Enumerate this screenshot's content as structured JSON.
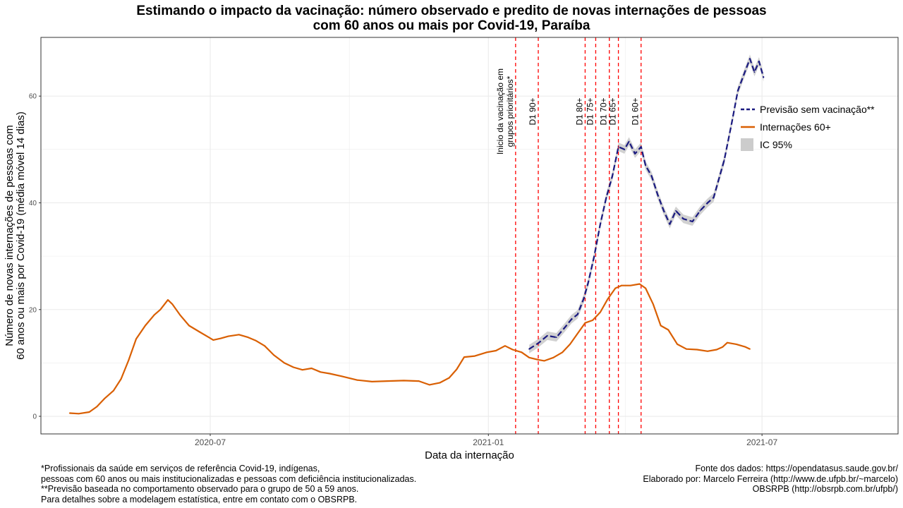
{
  "title_lines": [
    "Estimando o impacto da vacinação: número observado e predito de novas internações de pessoas",
    "com 60 anos ou mais por Covid-19, Paraíba"
  ],
  "footnotes_left": [
    "*Profissionais da saúde em serviços de referência Covid-19, indígenas,",
    "pessoas com 60 anos ou mais institucionalizadas e pessoas com deficiência institucionalizadas.",
    "**Previsão baseada no comportamento observado para o grupo de 50 a 59 anos.",
    "Para detalhes sobre a modelagem estatística, entre em contato com o OBSRPB."
  ],
  "footnotes_right": [
    "Fonte dos dados: https://opendatasus.saude.gov.br/",
    "Elaborado por: Marcelo Ferreira (http://www.de.ufpb.br/~marcelo)",
    "OBSRPB (http://obsrpb.com.br/ufpb/)"
  ],
  "colors": {
    "observed": "#d95f02",
    "predicted": "#1a1a80",
    "ci": "#cccccc",
    "vline": "#ff0000",
    "grid": "#ebebeb",
    "panel_border": "#333333"
  },
  "chart_data": {
    "type": "line",
    "xlabel": "Data da internação",
    "ylabel_lines": [
      "Número de novas internações de pessoas com",
      "60 anos ou mais por Covid-19 (média móvel 14 dias)"
    ],
    "xlim": [
      "2020-03-11",
      "2021-09-29"
    ],
    "ylim": [
      -3.3,
      71
    ],
    "y_ticks": [
      0,
      20,
      40,
      60
    ],
    "x_ticks": [
      {
        "date": "2020-07-01",
        "label": "2020-07"
      },
      {
        "date": "2021-01-01",
        "label": "2021-01"
      },
      {
        "date": "2021-07-01",
        "label": "2021-07"
      }
    ],
    "grid": true,
    "legend_position": "right",
    "legend": [
      {
        "label": "Previsão sem vacinação**",
        "kind": "dashed",
        "series": "predicted"
      },
      {
        "label": "Internações 60+",
        "kind": "solid",
        "series": "observed"
      },
      {
        "label": "IC 95%",
        "kind": "band",
        "series": "ci"
      }
    ],
    "vlines": [
      {
        "date": "2021-01-19",
        "label_lines": [
          "Inicio da vacinação em",
          "grupos prioritários*"
        ]
      },
      {
        "date": "2021-02-03",
        "label_lines": [
          "D1 90+"
        ]
      },
      {
        "date": "2021-03-06",
        "label_lines": [
          "D1 80+"
        ]
      },
      {
        "date": "2021-03-13",
        "label_lines": [
          "D1 75+"
        ]
      },
      {
        "date": "2021-03-22",
        "label_lines": [
          "D1 70+"
        ]
      },
      {
        "date": "2021-03-28",
        "label_lines": [
          "D1 65+"
        ]
      },
      {
        "date": "2021-04-12",
        "label_lines": [
          "D1 60+"
        ]
      }
    ],
    "series": [
      {
        "name": "Internações 60+",
        "key": "observed",
        "points": [
          [
            "2020-03-30",
            0.6
          ],
          [
            "2020-04-05",
            0.5
          ],
          [
            "2020-04-12",
            0.8
          ],
          [
            "2020-04-17",
            1.8
          ],
          [
            "2020-04-22",
            3.3
          ],
          [
            "2020-04-28",
            4.8
          ],
          [
            "2020-05-03",
            7.0
          ],
          [
            "2020-05-08",
            10.5
          ],
          [
            "2020-05-13",
            14.5
          ],
          [
            "2020-05-19",
            17.0
          ],
          [
            "2020-05-25",
            19.0
          ],
          [
            "2020-05-29",
            20.0
          ],
          [
            "2020-06-03",
            21.8
          ],
          [
            "2020-06-06",
            21.0
          ],
          [
            "2020-06-11",
            19.0
          ],
          [
            "2020-06-17",
            17.0
          ],
          [
            "2020-06-24",
            15.8
          ],
          [
            "2020-06-30",
            14.8
          ],
          [
            "2020-07-03",
            14.3
          ],
          [
            "2020-07-08",
            14.6
          ],
          [
            "2020-07-13",
            15.0
          ],
          [
            "2020-07-20",
            15.3
          ],
          [
            "2020-07-26",
            14.8
          ],
          [
            "2020-07-31",
            14.2
          ],
          [
            "2020-08-06",
            13.2
          ],
          [
            "2020-08-12",
            11.5
          ],
          [
            "2020-08-19",
            10.0
          ],
          [
            "2020-08-25",
            9.2
          ],
          [
            "2020-08-31",
            8.7
          ],
          [
            "2020-09-06",
            9.0
          ],
          [
            "2020-09-12",
            8.3
          ],
          [
            "2020-09-18",
            8.0
          ],
          [
            "2020-09-26",
            7.5
          ],
          [
            "2020-10-06",
            6.8
          ],
          [
            "2020-10-16",
            6.5
          ],
          [
            "2020-10-26",
            6.6
          ],
          [
            "2020-11-06",
            6.7
          ],
          [
            "2020-11-16",
            6.6
          ],
          [
            "2020-11-23",
            5.9
          ],
          [
            "2020-11-30",
            6.3
          ],
          [
            "2020-12-06",
            7.2
          ],
          [
            "2020-12-11",
            8.8
          ],
          [
            "2020-12-16",
            11.1
          ],
          [
            "2020-12-23",
            11.3
          ],
          [
            "2020-12-31",
            12.0
          ],
          [
            "2021-01-06",
            12.3
          ],
          [
            "2021-01-12",
            13.2
          ],
          [
            "2021-01-17",
            12.5
          ],
          [
            "2021-01-23",
            12.0
          ],
          [
            "2021-01-28",
            11.0
          ],
          [
            "2021-02-03",
            10.6
          ],
          [
            "2021-02-07",
            10.4
          ],
          [
            "2021-02-13",
            11.0
          ],
          [
            "2021-02-19",
            12.0
          ],
          [
            "2021-02-24",
            13.5
          ],
          [
            "2021-03-01",
            15.5
          ],
          [
            "2021-03-06",
            17.5
          ],
          [
            "2021-03-11",
            18.0
          ],
          [
            "2021-03-16",
            19.5
          ],
          [
            "2021-03-21",
            22.0
          ],
          [
            "2021-03-26",
            24.0
          ],
          [
            "2021-03-30",
            24.5
          ],
          [
            "2021-04-05",
            24.5
          ],
          [
            "2021-04-11",
            24.8
          ],
          [
            "2021-04-15",
            24.0
          ],
          [
            "2021-04-20",
            21.0
          ],
          [
            "2021-04-25",
            17.0
          ],
          [
            "2021-04-30",
            16.2
          ],
          [
            "2021-05-06",
            13.5
          ],
          [
            "2021-05-12",
            12.6
          ],
          [
            "2021-05-19",
            12.5
          ],
          [
            "2021-05-26",
            12.2
          ],
          [
            "2021-06-01",
            12.5
          ],
          [
            "2021-06-05",
            13.0
          ],
          [
            "2021-06-08",
            13.8
          ],
          [
            "2021-06-14",
            13.5
          ],
          [
            "2021-06-20",
            13.0
          ],
          [
            "2021-06-23",
            12.6
          ]
        ]
      },
      {
        "name": "Previsão sem vacinação**",
        "key": "predicted",
        "points": [
          [
            "2021-01-28",
            12.6
          ],
          [
            "2021-02-03",
            13.7
          ],
          [
            "2021-02-09",
            15.1
          ],
          [
            "2021-02-15",
            14.8
          ],
          [
            "2021-02-21",
            16.8
          ],
          [
            "2021-02-25",
            18.2
          ],
          [
            "2021-03-01",
            19.1
          ],
          [
            "2021-03-05",
            22.0
          ],
          [
            "2021-03-08",
            25.0
          ],
          [
            "2021-03-12",
            30.0
          ],
          [
            "2021-03-16",
            36.0
          ],
          [
            "2021-03-20",
            41.0
          ],
          [
            "2021-03-24",
            45.0
          ],
          [
            "2021-03-28",
            50.5
          ],
          [
            "2021-04-01",
            50.0
          ],
          [
            "2021-04-04",
            51.5
          ],
          [
            "2021-04-08",
            49.2
          ],
          [
            "2021-04-12",
            50.5
          ],
          [
            "2021-04-15",
            47.0
          ],
          [
            "2021-04-19",
            45.0
          ],
          [
            "2021-04-23",
            41.5
          ],
          [
            "2021-04-27",
            38.5
          ],
          [
            "2021-05-01",
            36.0
          ],
          [
            "2021-05-05",
            38.5
          ],
          [
            "2021-05-10",
            37.0
          ],
          [
            "2021-05-16",
            36.5
          ],
          [
            "2021-05-21",
            38.5
          ],
          [
            "2021-05-26",
            40.0
          ],
          [
            "2021-05-30",
            41.0
          ],
          [
            "2021-06-02",
            44.0
          ],
          [
            "2021-06-06",
            48.0
          ],
          [
            "2021-06-11",
            55.0
          ],
          [
            "2021-06-15",
            61.0
          ],
          [
            "2021-06-19",
            64.0
          ],
          [
            "2021-06-23",
            67.0
          ],
          [
            "2021-06-26",
            64.5
          ],
          [
            "2021-06-29",
            66.5
          ],
          [
            "2021-07-02",
            63.5
          ]
        ]
      }
    ]
  }
}
